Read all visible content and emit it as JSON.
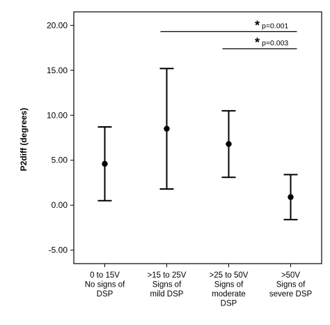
{
  "chart_data": {
    "type": "errorbar",
    "ylabel": "P2diff (degrees)",
    "ylim": [
      -6.5,
      21.5
    ],
    "yticks": [
      -5,
      0,
      5,
      10,
      15,
      20
    ],
    "ytick_labels": [
      "-5.00",
      "0.00",
      "5.00",
      "10.00",
      "15.00",
      "20.00"
    ],
    "categories": [
      [
        "0 to 15V",
        "No signs of",
        "DSP"
      ],
      [
        ">15 to 25V",
        "Signs of",
        "mild DSP"
      ],
      [
        ">25 to 50V",
        "Signs of",
        "moderate",
        "DSP"
      ],
      [
        ">50V",
        "Signs of",
        "severe DSP"
      ]
    ],
    "series": [
      {
        "mean": [
          4.6,
          8.5,
          6.8,
          0.9
        ],
        "lower": [
          0.5,
          1.8,
          3.1,
          -1.6
        ],
        "upper": [
          8.7,
          15.2,
          10.5,
          3.4
        ]
      }
    ],
    "annotations": [
      {
        "symbol": "*",
        "text": "p=0.001",
        "from": 1,
        "to": 3,
        "y": 19.3
      },
      {
        "symbol": "*",
        "text": "p=0.003",
        "from": 2,
        "to": 3,
        "y": 17.4
      }
    ]
  }
}
